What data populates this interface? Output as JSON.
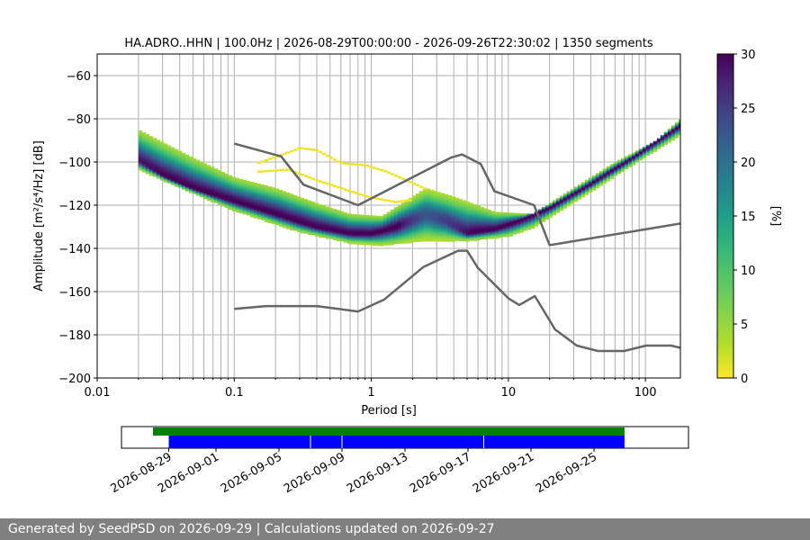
{
  "chart_data": [
    {
      "type": "heatmap",
      "title": "HA.ADRO..HHN | 100.0Hz | 2026-08-29T00:00:00 - 2026-09-26T22:30:02 | 1350 segments",
      "xlabel": "Period [s]",
      "ylabel": "Amplitude [m²/s⁴/Hz] [dB]",
      "xscale": "log",
      "xlim": [
        0.01,
        180
      ],
      "ylim": [
        -200,
        -50
      ],
      "x_ticks": [
        0.01,
        0.1,
        1,
        10,
        100
      ],
      "x_tick_labels": [
        "0.01",
        "0.1",
        "1",
        "10",
        "100"
      ],
      "y_ticks": [
        -200,
        -180,
        -160,
        -140,
        -120,
        -100,
        -80,
        -60
      ],
      "y_tick_labels": [
        "−200",
        "−180",
        "−160",
        "−140",
        "−120",
        "−100",
        "−80",
        "−60"
      ],
      "grid": true,
      "colorbar": {
        "label": "[%]",
        "colormap": "viridis_r",
        "range": [
          0,
          30
        ],
        "ticks": [
          0,
          5,
          10,
          15,
          20,
          25,
          30
        ],
        "tick_labels": [
          "0",
          "5",
          "10",
          "15",
          "20",
          "25",
          "30"
        ]
      },
      "psd_mode": [
        [
          0.02,
          -99
        ],
        [
          0.03,
          -106
        ],
        [
          0.05,
          -112
        ],
        [
          0.1,
          -118
        ],
        [
          0.2,
          -124
        ],
        [
          0.4,
          -130
        ],
        [
          0.7,
          -133
        ],
        [
          1.0,
          -133
        ],
        [
          1.5,
          -130
        ],
        [
          2.5,
          -124
        ],
        [
          3.5,
          -127
        ],
        [
          5.0,
          -133
        ],
        [
          8.0,
          -131
        ],
        [
          12.0,
          -127
        ],
        [
          20.0,
          -121
        ],
        [
          40.0,
          -110
        ],
        [
          80.0,
          -98
        ],
        [
          180.0,
          -83
        ]
      ],
      "psd_upper": [
        [
          0.02,
          -85
        ],
        [
          0.05,
          -98
        ],
        [
          0.1,
          -107
        ],
        [
          0.2,
          -112
        ],
        [
          0.4,
          -119
        ],
        [
          0.7,
          -124
        ],
        [
          1.2,
          -125
        ],
        [
          2.5,
          -112
        ],
        [
          4.0,
          -116
        ],
        [
          8.0,
          -123
        ],
        [
          15.0,
          -124
        ],
        [
          30.0,
          -112
        ],
        [
          60.0,
          -100
        ],
        [
          120.0,
          -90
        ],
        [
          180.0,
          -80
        ]
      ],
      "psd_lower": [
        [
          0.02,
          -103
        ],
        [
          0.05,
          -114
        ],
        [
          0.1,
          -122
        ],
        [
          0.3,
          -132
        ],
        [
          0.7,
          -137
        ],
        [
          1.2,
          -138
        ],
        [
          2.5,
          -136
        ],
        [
          5.0,
          -136
        ],
        [
          10.0,
          -134
        ],
        [
          15.0,
          -130
        ],
        [
          30.0,
          -118
        ],
        [
          60.0,
          -106
        ],
        [
          120.0,
          -94
        ],
        [
          180.0,
          -87
        ]
      ],
      "outlier_upper": [
        [
          0.15,
          -100
        ],
        [
          0.25,
          -95
        ],
        [
          0.3,
          -93
        ],
        [
          0.4,
          -94
        ],
        [
          0.6,
          -100
        ],
        [
          0.9,
          -101
        ],
        [
          1.3,
          -104
        ],
        [
          1.8,
          -108
        ],
        [
          2.5,
          -112
        ]
      ],
      "outlier_lower": [
        [
          0.15,
          -104
        ],
        [
          0.25,
          -103
        ],
        [
          0.4,
          -108
        ],
        [
          0.7,
          -113
        ],
        [
          1.0,
          -116
        ],
        [
          1.5,
          -118
        ],
        [
          2.0,
          -117
        ]
      ],
      "reference_models": [
        {
          "points": [
            [
              0.1,
              -91.5
            ],
            [
              0.22,
              -97.4
            ],
            [
              0.32,
              -110.5
            ],
            [
              0.8,
              -120
            ],
            [
              3.8,
              -98
            ],
            [
              4.6,
              -96.5
            ],
            [
              6.3,
              -101
            ],
            [
              7.9,
              -113.5
            ],
            [
              15.4,
              -120
            ],
            [
              20,
              -138.5
            ],
            [
              180,
              -128.5
            ]
          ]
        },
        {
          "points": [
            [
              0.1,
              -168
            ],
            [
              0.17,
              -166.7
            ],
            [
              0.4,
              -166.7
            ],
            [
              0.8,
              -169.2
            ],
            [
              1.24,
              -163.7
            ],
            [
              2.4,
              -148.6
            ],
            [
              4.3,
              -141.1
            ],
            [
              5.0,
              -141.1
            ],
            [
              6.0,
              -149.1
            ],
            [
              10.0,
              -163.1
            ],
            [
              12.0,
              -166.2
            ],
            [
              15.6,
              -162.1
            ],
            [
              21.9,
              -177.5
            ],
            [
              31.6,
              -185
            ],
            [
              45,
              -187.5
            ],
            [
              70,
              -187.5
            ],
            [
              101,
              -185
            ],
            [
              154,
              -185
            ],
            [
              180,
              -186
            ]
          ]
        }
      ]
    },
    {
      "type": "timeline",
      "xlim": [
        "2026-08-26",
        "2026-10-01"
      ],
      "x_tick_labels": [
        "2026-08-29",
        "2026-09-01",
        "2026-09-05",
        "2026-09-09",
        "2026-09-13",
        "2026-09-17",
        "2026-09-21",
        "2026-09-25"
      ],
      "x_tick_dates": [
        "2026-08-29",
        "2026-09-01",
        "2026-09-05",
        "2026-09-09",
        "2026-09-13",
        "2026-09-17",
        "2026-09-21",
        "2026-09-25"
      ],
      "available_data": {
        "color": "#008000",
        "start": "2026-08-28",
        "end": "2026-09-26T22:30:02"
      },
      "processed_data": {
        "color": "#0000ff",
        "start": "2026-08-29",
        "end": "2026-09-26T22:30:02",
        "gaps": [
          "2026-09-07",
          "2026-09-09",
          "2026-09-18"
        ]
      }
    }
  ],
  "footer": {
    "text": "Generated by SeedPSD on 2026-09-29 | Calculations updated on 2026-09-27"
  }
}
